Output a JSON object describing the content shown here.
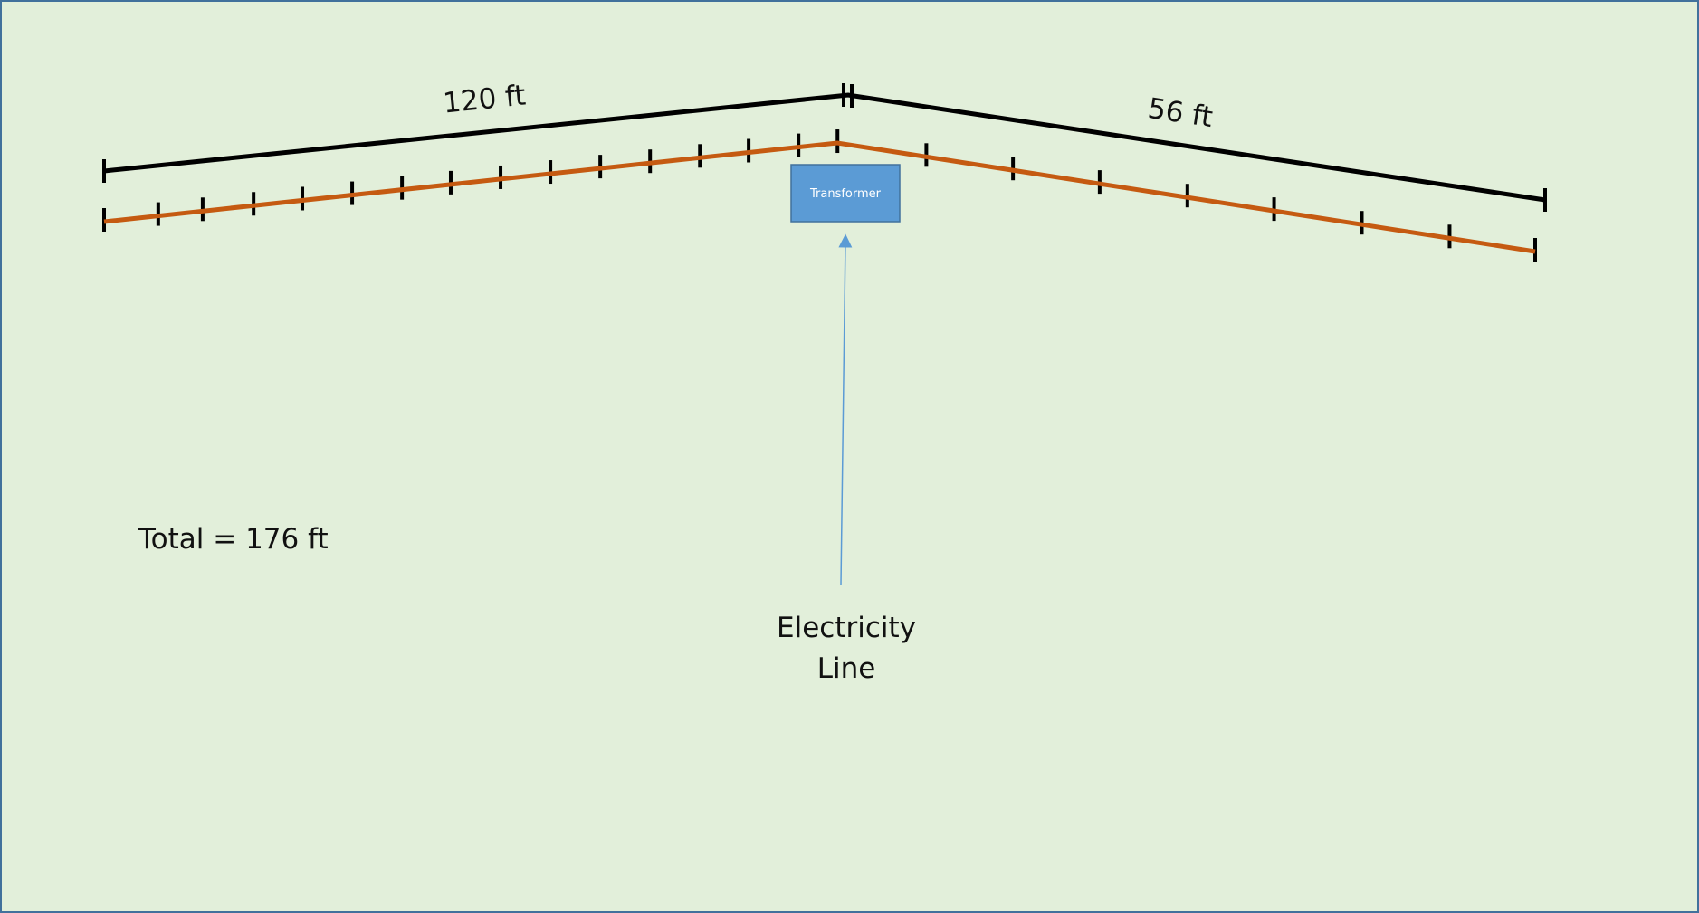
{
  "segments": [
    {
      "label": "120 ft"
    },
    {
      "label": "56 ft"
    }
  ],
  "transformer": {
    "label": "Transformer"
  },
  "source": {
    "lines": [
      "Electricity",
      "Line"
    ]
  },
  "total": "Total = 176 ft"
}
